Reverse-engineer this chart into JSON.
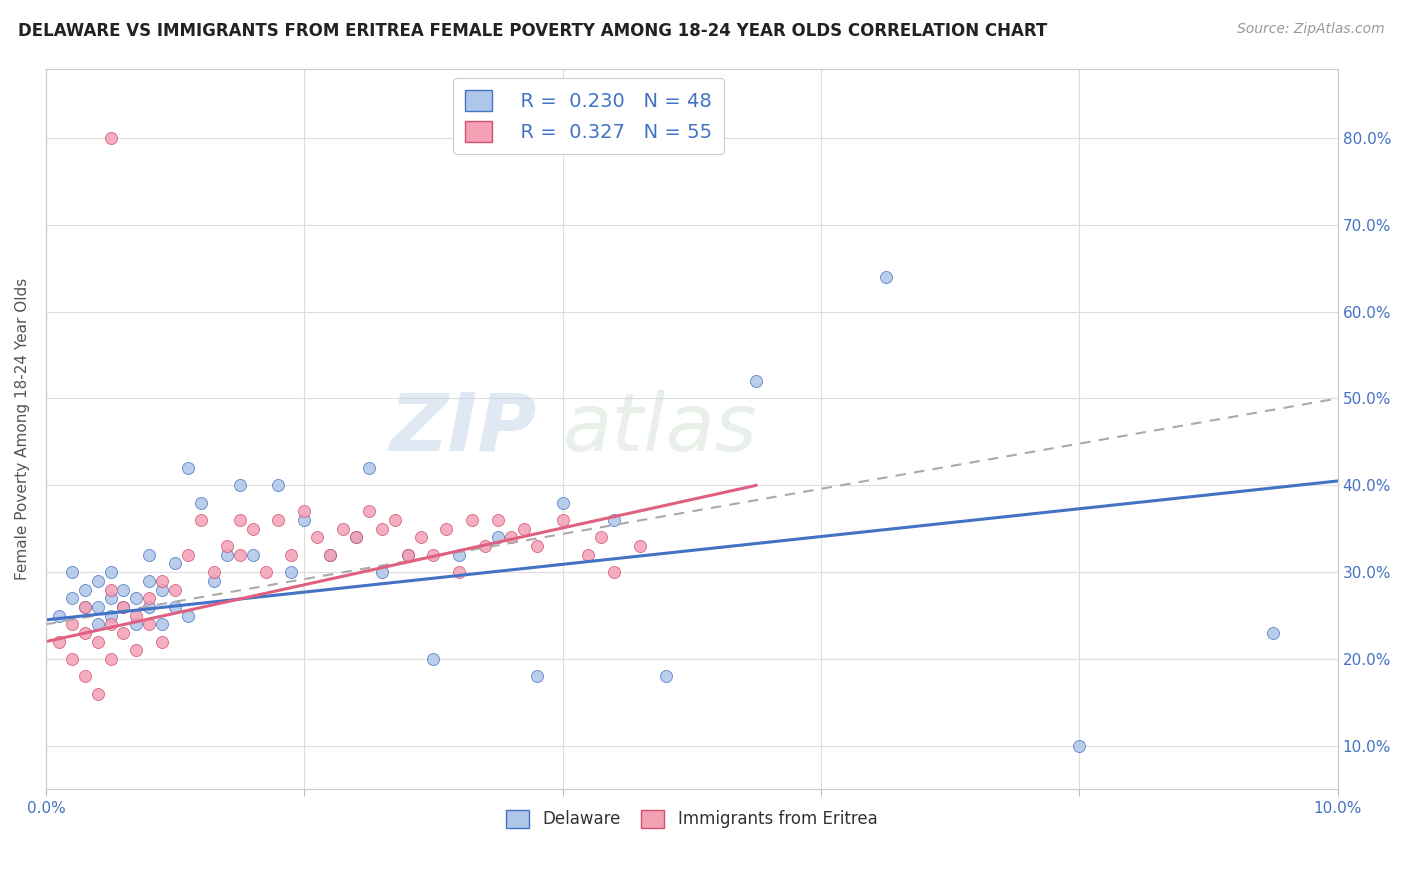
{
  "title": "DELAWARE VS IMMIGRANTS FROM ERITREA FEMALE POVERTY AMONG 18-24 YEAR OLDS CORRELATION CHART",
  "source": "Source: ZipAtlas.com",
  "ylabel": "Female Poverty Among 18-24 Year Olds",
  "xlim": [
    0.0,
    0.1
  ],
  "ylim": [
    0.05,
    0.88
  ],
  "blue_color": "#aec6e8",
  "pink_color": "#f4a0b5",
  "line_blue": "#4472c4",
  "line_pink": "#e06080",
  "text_color": "#4472c4",
  "blue_scatter_x": [
    0.001,
    0.002,
    0.002,
    0.003,
    0.003,
    0.004,
    0.004,
    0.004,
    0.005,
    0.005,
    0.005,
    0.006,
    0.006,
    0.007,
    0.007,
    0.008,
    0.008,
    0.008,
    0.009,
    0.009,
    0.01,
    0.01,
    0.011,
    0.011,
    0.012,
    0.013,
    0.014,
    0.015,
    0.016,
    0.018,
    0.019,
    0.02,
    0.022,
    0.024,
    0.025,
    0.026,
    0.028,
    0.03,
    0.032,
    0.035,
    0.038,
    0.04,
    0.044,
    0.048,
    0.055,
    0.065,
    0.08,
    0.095
  ],
  "blue_scatter_y": [
    0.25,
    0.27,
    0.3,
    0.26,
    0.28,
    0.24,
    0.26,
    0.29,
    0.25,
    0.27,
    0.3,
    0.26,
    0.28,
    0.24,
    0.27,
    0.26,
    0.29,
    0.32,
    0.24,
    0.28,
    0.26,
    0.31,
    0.25,
    0.42,
    0.38,
    0.29,
    0.32,
    0.4,
    0.32,
    0.4,
    0.3,
    0.36,
    0.32,
    0.34,
    0.42,
    0.3,
    0.32,
    0.2,
    0.32,
    0.34,
    0.18,
    0.38,
    0.36,
    0.18,
    0.52,
    0.64,
    0.1,
    0.23
  ],
  "pink_scatter_x": [
    0.001,
    0.002,
    0.002,
    0.003,
    0.003,
    0.003,
    0.004,
    0.004,
    0.005,
    0.005,
    0.005,
    0.006,
    0.006,
    0.007,
    0.007,
    0.008,
    0.008,
    0.009,
    0.009,
    0.01,
    0.011,
    0.012,
    0.013,
    0.014,
    0.015,
    0.015,
    0.016,
    0.017,
    0.018,
    0.019,
    0.02,
    0.021,
    0.022,
    0.023,
    0.024,
    0.025,
    0.026,
    0.027,
    0.028,
    0.029,
    0.03,
    0.031,
    0.032,
    0.033,
    0.034,
    0.035,
    0.036,
    0.037,
    0.038,
    0.04,
    0.042,
    0.043,
    0.044,
    0.046,
    0.005
  ],
  "pink_scatter_y": [
    0.22,
    0.24,
    0.2,
    0.23,
    0.18,
    0.26,
    0.22,
    0.16,
    0.24,
    0.2,
    0.28,
    0.23,
    0.26,
    0.25,
    0.21,
    0.24,
    0.27,
    0.22,
    0.29,
    0.28,
    0.32,
    0.36,
    0.3,
    0.33,
    0.32,
    0.36,
    0.35,
    0.3,
    0.36,
    0.32,
    0.37,
    0.34,
    0.32,
    0.35,
    0.34,
    0.37,
    0.35,
    0.36,
    0.32,
    0.34,
    0.32,
    0.35,
    0.3,
    0.36,
    0.33,
    0.36,
    0.34,
    0.35,
    0.33,
    0.36,
    0.32,
    0.34,
    0.3,
    0.33,
    0.8
  ],
  "ytick_vals": [
    0.1,
    0.2,
    0.3,
    0.4,
    0.5,
    0.6,
    0.7,
    0.8
  ],
  "ytick_labels": [
    "10.0%",
    "20.0%",
    "30.0%",
    "40.0%",
    "50.0%",
    "60.0%",
    "70.0%",
    "80.0%"
  ],
  "xtick_vals": [
    0.0,
    0.02,
    0.04,
    0.06,
    0.08,
    0.1
  ],
  "xtick_labels": [
    "0.0%",
    "",
    "",
    "",
    "",
    "10.0%"
  ],
  "blue_line_x": [
    0.0,
    0.1
  ],
  "blue_line_y": [
    0.245,
    0.405
  ],
  "pink_line_x": [
    0.0,
    0.055
  ],
  "pink_line_y": [
    0.22,
    0.4
  ],
  "dashed_line_x": [
    0.0,
    0.1
  ],
  "dashed_line_y": [
    0.24,
    0.5
  ]
}
